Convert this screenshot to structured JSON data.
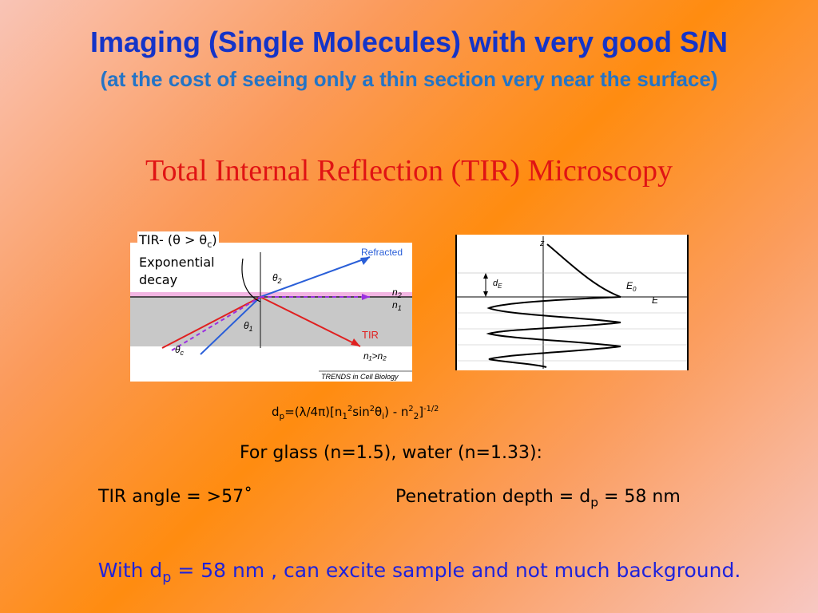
{
  "slide": {
    "title": "Imaging (Single Molecules) with very good S/N",
    "subtitle": "(at the cost of seeing only a thin section very near the surface)",
    "heading": "Total Internal Reflection (TIR) Microscopy"
  },
  "annotation": {
    "line1": "TIR- (θ > θ",
    "line1_sub": "c",
    "line1_close": ")",
    "line2": "Exponential",
    "line3": "decay"
  },
  "figure_left": {
    "refracted": "Refracted",
    "n2": "n",
    "n2_sub": "2",
    "n1": "n",
    "n1_sub": "1",
    "theta2": "θ",
    "theta2_sub": "2",
    "theta1": "θ",
    "theta1_sub": "1",
    "thetac": "θ",
    "thetac_sub": "c",
    "tir": "TIR",
    "condition": "n₁>n₂",
    "credit": "TRENDS in Cell Biology"
  },
  "figure_right": {
    "z": "z",
    "de": "d",
    "de_sub": "E",
    "e0": "E",
    "e0_sub": "0",
    "e": "E"
  },
  "formula": {
    "a": "d",
    "a_sub": "p",
    "b": "=(λ/4π)[n",
    "b_sub": "1",
    "b_sup": "2",
    "c": "sin",
    "c_sup": "2",
    "d": "θ",
    "d_sub": "i",
    "e": ") -  n",
    "e_sup": "2",
    "e_sub": "2",
    "f": "]",
    "f_sup": "-1/2"
  },
  "glass_line": "For glass (n=1.5), water (n=1.33):",
  "tir_angle": "TIR angle = >57˚",
  "penetration": {
    "a": "Penetration depth = d",
    "sub": "p",
    "b": " = 58 nm"
  },
  "bottom_line": {
    "a": "With d",
    "sub": "p",
    "b": " = 58 nm , can excite sample and not much background."
  }
}
